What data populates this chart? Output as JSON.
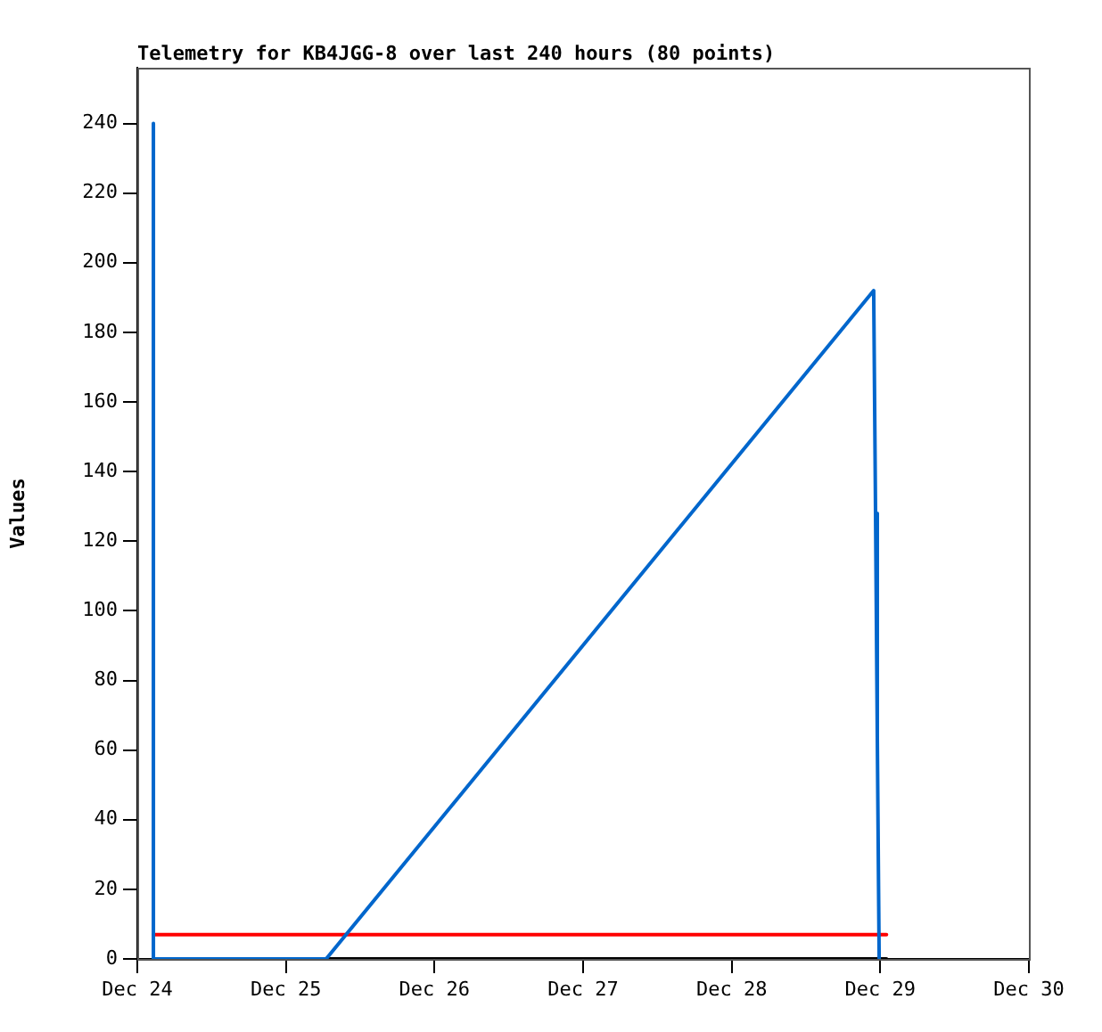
{
  "chart_data": {
    "type": "line",
    "title": "Telemetry for KB4JGG-8 over last 240 hours (80 points)",
    "ylabel": "Values",
    "series": [
      {
        "color": "#0066cc",
        "x": [
          "--12-24T02:36",
          "--12-24T02:36",
          "--12-25T06:30",
          "--12-28T22:56",
          "--12-28T23:14",
          "--12-28T23:31",
          "--12-28T23:49"
        ],
        "values": [
          240,
          0,
          0,
          192,
          128,
          64,
          0
        ]
      },
      {
        "color": "#ff0000",
        "x": [
          "--12-24T02:36",
          "--12-29T01:00"
        ],
        "values": [
          7,
          7
        ]
      },
      {
        "color": "#000000",
        "x": [
          "--12-24T02:36",
          "--12-29T01:00"
        ],
        "values": [
          0,
          0
        ]
      }
    ],
    "xlim": [
      "--12-24",
      "--12-30"
    ],
    "xticks": [
      {
        "value": "--12-24",
        "label": "Dec 24"
      },
      {
        "value": "--12-25",
        "label": "Dec 25"
      },
      {
        "value": "--12-26",
        "label": "Dec 26"
      },
      {
        "value": "--12-27",
        "label": "Dec 27"
      },
      {
        "value": "--12-28",
        "label": "Dec 28"
      },
      {
        "value": "--12-29",
        "label": "Dec 29"
      },
      {
        "value": "--12-30",
        "label": "Dec 30"
      }
    ],
    "ylim": [
      0,
      256
    ],
    "yticks": [
      0,
      20,
      40,
      60,
      80,
      100,
      120,
      140,
      160,
      180,
      200,
      220,
      240
    ],
    "grid": false,
    "legend": false,
    "marker": "none",
    "line_style": "solid"
  }
}
